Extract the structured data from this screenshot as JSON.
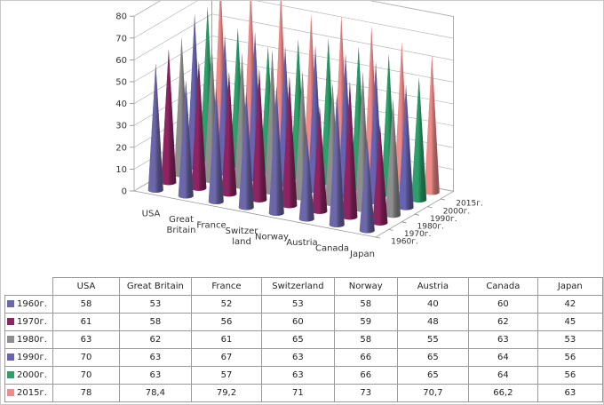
{
  "chart_data": {
    "type": "bar",
    "subtype": "3d-cone",
    "categories": [
      "USA",
      "Great Britain",
      "France",
      "Switzerland",
      "Norway",
      "Austria",
      "Canada",
      "Japan"
    ],
    "category_axis_labels": [
      [
        "USA"
      ],
      [
        "Great",
        "Britain"
      ],
      [
        "France"
      ],
      [
        "Switzer",
        "land"
      ],
      [
        "Norway"
      ],
      [
        "Austria"
      ],
      [
        "Canada"
      ],
      [
        "Japan"
      ]
    ],
    "series": [
      {
        "name": "1960г.",
        "color": "#6C67A8",
        "values": [
          58,
          53,
          52,
          53,
          58,
          40,
          60,
          42
        ],
        "labels": [
          "58",
          "53",
          "52",
          "53",
          "58",
          "40",
          "60",
          "42"
        ]
      },
      {
        "name": "1970г.",
        "color": "#8E2562",
        "values": [
          61,
          58,
          56,
          60,
          59,
          48,
          62,
          45
        ],
        "labels": [
          "61",
          "58",
          "56",
          "60",
          "59",
          "48",
          "62",
          "45"
        ]
      },
      {
        "name": "1980г.",
        "color": "#8E8E8E",
        "values": [
          63,
          62,
          61,
          65,
          58,
          55,
          63,
          53
        ],
        "labels": [
          "63",
          "62",
          "61",
          "65",
          "58",
          "55",
          "63",
          "53"
        ]
      },
      {
        "name": "1990г.",
        "color": "#6863B0",
        "values": [
          70,
          63,
          67,
          63,
          66,
          65,
          64,
          56
        ],
        "labels": [
          "70",
          "63",
          "67",
          "63",
          "66",
          "65",
          "64",
          "56"
        ]
      },
      {
        "name": "2000г.",
        "color": "#2E9E6A",
        "values": [
          70,
          63,
          57,
          63,
          66,
          65,
          64,
          56
        ],
        "labels": [
          "70",
          "63",
          "57",
          "63",
          "66",
          "65",
          "64",
          "56"
        ]
      },
      {
        "name": "2015г.",
        "color": "#EE8A8A",
        "values": [
          78,
          78.4,
          79.2,
          71,
          73,
          70.7,
          66.2,
          63
        ],
        "labels": [
          "78",
          "78,4",
          "79,2",
          "71",
          "73",
          "70,7",
          "66,2",
          "63"
        ]
      }
    ],
    "depth_axis_labels": [
      "1960г.",
      "1970г.",
      "1980г.",
      "1990г.",
      "2000г.",
      "2015г."
    ],
    "ylim": [
      0,
      80
    ],
    "yticks": [
      "0",
      "10",
      "20",
      "30",
      "40",
      "50",
      "60",
      "70",
      "80"
    ],
    "grid": true,
    "legend": "data-table"
  },
  "table": {
    "headers": [
      "USA",
      "Great Britain",
      "France",
      "Switzerland",
      "Norway",
      "Austria",
      "Canada",
      "Japan"
    ]
  }
}
